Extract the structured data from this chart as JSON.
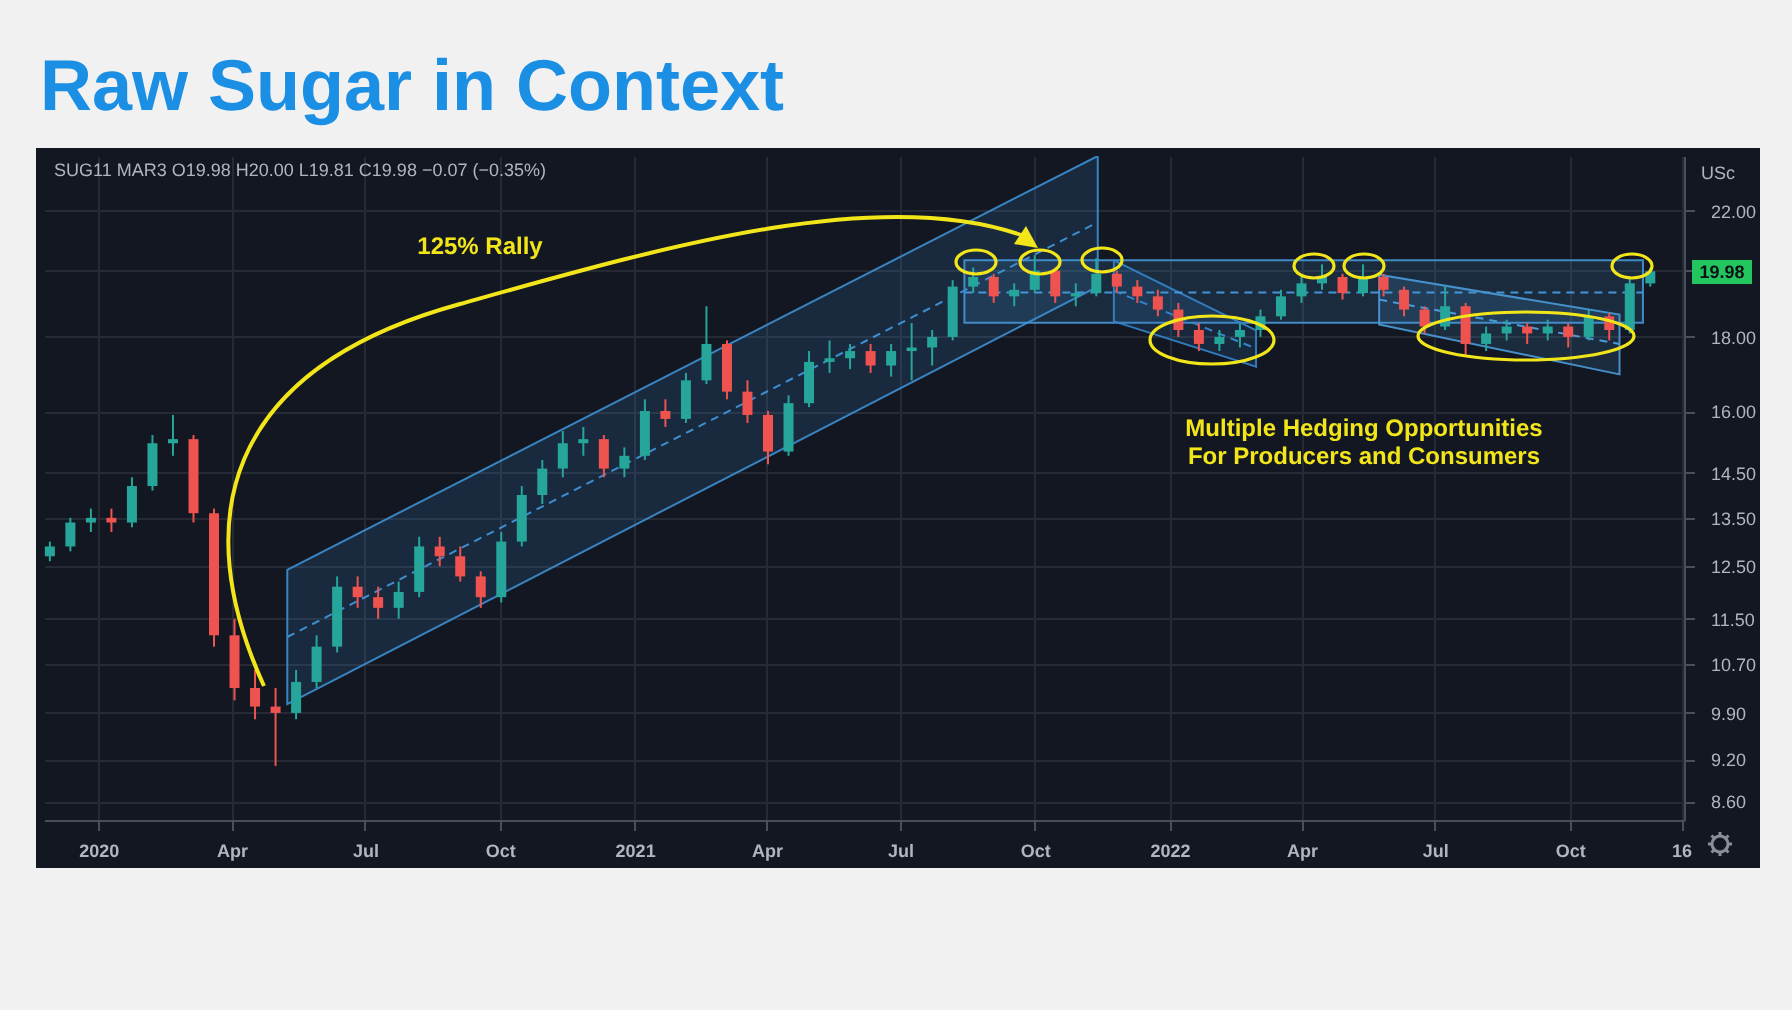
{
  "chart_data": {
    "type": "candlestick",
    "title": "Raw Sugar in Context",
    "subtitle": "SUG11 MAR3 O19.98 H20.00 L19.81 C19.98 −0.07 (−0.35%)",
    "ylabel": "USc",
    "annotations": [
      "125% Rally",
      "Multiple Hedging Opportunities For Producers and Consumers",
      "19.98"
    ],
    "x": [
      "2019-11-29",
      "2019-12-13",
      "2019-12-27",
      "2020-01-10",
      "2020-01-24",
      "2020-02-07",
      "2020-02-21",
      "2020-03-06",
      "2020-03-20",
      "2020-04-03",
      "2020-04-17",
      "2020-05-01",
      "2020-05-15",
      "2020-05-29",
      "2020-06-12",
      "2020-06-26",
      "2020-07-10",
      "2020-07-24",
      "2020-08-07",
      "2020-08-21",
      "2020-09-04",
      "2020-09-18",
      "2020-10-02",
      "2020-10-16",
      "2020-10-30",
      "2020-11-13",
      "2020-11-27",
      "2020-12-11",
      "2020-12-25",
      "2021-01-08",
      "2021-01-22",
      "2021-02-05",
      "2021-02-19",
      "2021-03-05",
      "2021-03-19",
      "2021-04-02",
      "2021-04-16",
      "2021-04-30",
      "2021-05-14",
      "2021-05-28",
      "2021-06-11",
      "2021-06-25",
      "2021-07-09",
      "2021-07-23",
      "2021-08-06",
      "2021-08-20",
      "2021-09-03",
      "2021-09-17",
      "2021-10-01",
      "2021-10-15",
      "2021-10-29",
      "2021-11-12",
      "2021-11-26",
      "2021-12-10",
      "2021-12-24",
      "2022-01-07",
      "2022-01-21",
      "2022-02-04",
      "2022-02-18",
      "2022-03-04",
      "2022-03-18",
      "2022-04-01",
      "2022-04-15",
      "2022-04-29",
      "2022-05-13",
      "2022-05-27",
      "2022-06-10",
      "2022-06-24",
      "2022-07-08",
      "2022-07-22",
      "2022-08-05",
      "2022-08-19",
      "2022-09-02",
      "2022-09-16",
      "2022-09-30",
      "2022-10-14",
      "2022-10-28",
      "2022-11-11",
      "2022-11-25"
    ],
    "ohlc": [
      [
        12.7,
        13.0,
        12.6,
        12.9
      ],
      [
        12.9,
        13.5,
        12.8,
        13.4
      ],
      [
        13.4,
        13.7,
        13.2,
        13.5
      ],
      [
        13.5,
        13.7,
        13.2,
        13.4
      ],
      [
        13.4,
        14.4,
        13.3,
        14.2
      ],
      [
        14.2,
        15.4,
        14.1,
        15.2
      ],
      [
        15.2,
        15.9,
        14.9,
        15.3
      ],
      [
        15.3,
        15.4,
        13.4,
        13.6
      ],
      [
        13.6,
        13.7,
        11.0,
        11.2
      ],
      [
        11.2,
        11.5,
        10.1,
        10.3
      ],
      [
        10.3,
        10.6,
        9.8,
        10.0
      ],
      [
        10.0,
        10.3,
        9.1,
        9.9
      ],
      [
        9.9,
        10.6,
        9.8,
        10.4
      ],
      [
        10.4,
        11.2,
        10.3,
        11.0
      ],
      [
        11.0,
        12.3,
        10.9,
        12.1
      ],
      [
        12.1,
        12.3,
        11.7,
        11.9
      ],
      [
        11.9,
        12.1,
        11.5,
        11.7
      ],
      [
        11.7,
        12.2,
        11.5,
        12.0
      ],
      [
        12.0,
        13.1,
        11.9,
        12.9
      ],
      [
        12.9,
        13.1,
        12.5,
        12.7
      ],
      [
        12.7,
        12.9,
        12.2,
        12.3
      ],
      [
        12.3,
        12.4,
        11.7,
        11.9
      ],
      [
        11.9,
        13.2,
        11.8,
        13.0
      ],
      [
        13.0,
        14.2,
        12.9,
        14.0
      ],
      [
        14.0,
        14.8,
        13.8,
        14.6
      ],
      [
        14.6,
        15.5,
        14.4,
        15.2
      ],
      [
        15.2,
        15.6,
        14.9,
        15.3
      ],
      [
        15.3,
        15.4,
        14.4,
        14.6
      ],
      [
        14.6,
        15.1,
        14.4,
        14.9
      ],
      [
        14.9,
        16.3,
        14.8,
        16.0
      ],
      [
        16.0,
        16.3,
        15.6,
        15.8
      ],
      [
        15.8,
        17.0,
        15.7,
        16.8
      ],
      [
        16.8,
        18.9,
        16.7,
        17.8
      ],
      [
        17.8,
        17.9,
        16.3,
        16.5
      ],
      [
        16.5,
        16.8,
        15.7,
        15.9
      ],
      [
        15.9,
        16.0,
        14.7,
        15.0
      ],
      [
        15.0,
        16.4,
        14.9,
        16.2
      ],
      [
        16.2,
        17.6,
        16.1,
        17.3
      ],
      [
        17.3,
        17.9,
        17.0,
        17.4
      ],
      [
        17.4,
        17.8,
        17.1,
        17.6
      ],
      [
        17.6,
        17.8,
        17.0,
        17.2
      ],
      [
        17.2,
        17.8,
        16.9,
        17.6
      ],
      [
        17.6,
        18.4,
        16.8,
        17.7
      ],
      [
        17.7,
        18.2,
        17.2,
        18.0
      ],
      [
        18.0,
        19.7,
        17.9,
        19.5
      ],
      [
        19.5,
        20.1,
        19.3,
        19.8
      ],
      [
        19.8,
        19.9,
        19.0,
        19.2
      ],
      [
        19.2,
        19.6,
        18.9,
        19.4
      ],
      [
        19.4,
        20.5,
        19.3,
        20.0
      ],
      [
        20.0,
        20.1,
        19.0,
        19.2
      ],
      [
        19.2,
        19.6,
        18.9,
        19.3
      ],
      [
        19.3,
        20.4,
        19.2,
        19.9
      ],
      [
        19.9,
        20.0,
        19.3,
        19.5
      ],
      [
        19.5,
        19.7,
        19.0,
        19.2
      ],
      [
        19.2,
        19.4,
        18.6,
        18.8
      ],
      [
        18.8,
        19.0,
        18.0,
        18.2
      ],
      [
        18.2,
        18.4,
        17.6,
        17.8
      ],
      [
        17.8,
        18.2,
        17.6,
        18.0
      ],
      [
        18.0,
        18.4,
        17.7,
        18.2
      ],
      [
        18.2,
        18.8,
        18.0,
        18.6
      ],
      [
        18.6,
        19.4,
        18.5,
        19.2
      ],
      [
        19.2,
        19.8,
        19.0,
        19.6
      ],
      [
        19.6,
        20.2,
        19.4,
        19.8
      ],
      [
        19.8,
        19.9,
        19.1,
        19.3
      ],
      [
        19.3,
        20.2,
        19.2,
        19.8
      ],
      [
        19.8,
        19.9,
        19.2,
        19.4
      ],
      [
        19.4,
        19.5,
        18.6,
        18.8
      ],
      [
        18.8,
        18.9,
        18.1,
        18.3
      ],
      [
        18.3,
        19.5,
        18.2,
        18.9
      ],
      [
        18.9,
        19.0,
        17.5,
        17.8
      ],
      [
        17.8,
        18.3,
        17.6,
        18.1
      ],
      [
        18.1,
        18.5,
        17.9,
        18.3
      ],
      [
        18.3,
        18.4,
        17.8,
        18.1
      ],
      [
        18.1,
        18.5,
        17.9,
        18.3
      ],
      [
        18.3,
        18.4,
        17.7,
        18.0
      ],
      [
        18.0,
        18.8,
        17.9,
        18.6
      ],
      [
        18.6,
        18.7,
        17.9,
        18.2
      ],
      [
        18.2,
        19.8,
        18.1,
        19.6
      ],
      [
        19.6,
        20.1,
        19.5,
        19.98
      ]
    ],
    "colors": [
      "#26a69a",
      "#26a69a",
      "#26a69a",
      "#ef5350",
      "#26a69a",
      "#26a69a",
      "#26a69a",
      "#ef5350",
      "#ef5350",
      "#ef5350",
      "#ef5350",
      "#ef5350",
      "#26a69a",
      "#26a69a",
      "#26a69a",
      "#ef5350",
      "#ef5350",
      "#26a69a",
      "#26a69a",
      "#ef5350",
      "#ef5350",
      "#ef5350",
      "#26a69a",
      "#26a69a",
      "#26a69a",
      "#26a69a",
      "#26a69a",
      "#ef5350",
      "#26a69a",
      "#26a69a",
      "#ef5350",
      "#26a69a",
      "#26a69a",
      "#ef5350",
      "#ef5350",
      "#ef5350",
      "#26a69a",
      "#26a69a",
      "#26a69a",
      "#26a69a",
      "#ef5350",
      "#26a69a",
      "#26a69a",
      "#26a69a",
      "#26a69a",
      "#26a69a",
      "#ef5350",
      "#26a69a",
      "#26a69a",
      "#ef5350",
      "#26a69a",
      "#26a69a",
      "#ef5350",
      "#ef5350",
      "#ef5350",
      "#ef5350",
      "#ef5350",
      "#26a69a",
      "#26a69a",
      "#26a69a",
      "#26a69a",
      "#26a69a",
      "#26a69a",
      "#ef5350",
      "#26a69a",
      "#ef5350",
      "#ef5350",
      "#ef5350",
      "#26a69a",
      "#ef5350",
      "#26a69a",
      "#26a69a",
      "#ef5350",
      "#26a69a",
      "#ef5350",
      "#26a69a",
      "#ef5350",
      "#26a69a",
      "#26a69a"
    ],
    "series": [
      {
        "type": "line",
        "color": "#3d8fd1",
        "line_style": "dashed",
        "x": [
          "2020-05-09",
          "2021-11-13"
        ],
        "values": [
          11.17,
          21.6
        ],
        "lower": [
          10.04,
          19.5
        ],
        "upper": [
          12.43,
          24.0
        ]
      },
      {
        "type": "line",
        "color": "#4596d6",
        "line_style": "dashed",
        "x": [
          "2021-08-14",
          "2022-11-20"
        ],
        "values": [
          19.32,
          19.32
        ],
        "lower": [
          18.41,
          18.41
        ],
        "upper": [
          20.33,
          20.33
        ]
      },
      {
        "type": "line",
        "color": "#3584cb",
        "line_style": "dashed",
        "x": [
          "2021-11-24",
          "2022-03-01"
        ],
        "values": [
          19.37,
          17.67
        ],
        "lower": [
          18.45,
          17.17
        ],
        "upper": [
          20.33,
          18.19
        ]
      },
      {
        "type": "line",
        "color": "#4b9bd9",
        "line_style": "dashed",
        "x": [
          "2022-05-24",
          "2022-11-04"
        ],
        "values": [
          19.1,
          17.8
        ],
        "lower": [
          18.36,
          16.96
        ],
        "upper": [
          19.87,
          18.65
        ]
      }
    ],
    "xlim": [
      "2019-11-25",
      "2022-12-18"
    ],
    "xticks": [
      {
        "value": "2020-01-01",
        "label": "2020"
      },
      {
        "value": "2020-04-01",
        "label": "Apr"
      },
      {
        "value": "2020-07-01",
        "label": "Jul"
      },
      {
        "value": "2020-10-01",
        "label": "Oct"
      },
      {
        "value": "2021-01-01",
        "label": "2021"
      },
      {
        "value": "2021-04-01",
        "label": "Apr"
      },
      {
        "value": "2021-07-01",
        "label": "Jul"
      },
      {
        "value": "2021-10-01",
        "label": "Oct"
      },
      {
        "value": "2022-01-01",
        "label": "2022"
      },
      {
        "value": "2022-04-01",
        "label": "Apr"
      },
      {
        "value": "2022-07-01",
        "label": "Jul"
      },
      {
        "value": "2022-10-01",
        "label": "Oct"
      },
      {
        "value": "2022-12-16",
        "label": "16"
      }
    ],
    "log": true,
    "ylim": [
      8.35,
      24
    ],
    "yticks": [
      {
        "value": 8.6,
        "label": "8.60"
      },
      {
        "value": 9.2,
        "label": "9.20"
      },
      {
        "value": 9.9,
        "label": "9.90"
      },
      {
        "value": 10.7,
        "label": "10.70"
      },
      {
        "value": 11.5,
        "label": "11.50"
      },
      {
        "value": 12.5,
        "label": "12.50"
      },
      {
        "value": 13.5,
        "label": "13.50"
      },
      {
        "value": 14.5,
        "label": "14.50"
      },
      {
        "value": 16,
        "label": "16.00"
      },
      {
        "value": 18,
        "label": "18.00"
      },
      {
        "value": 20,
        "label": null
      },
      {
        "value": 22,
        "label": "22.00"
      }
    ],
    "grid": true
  }
}
